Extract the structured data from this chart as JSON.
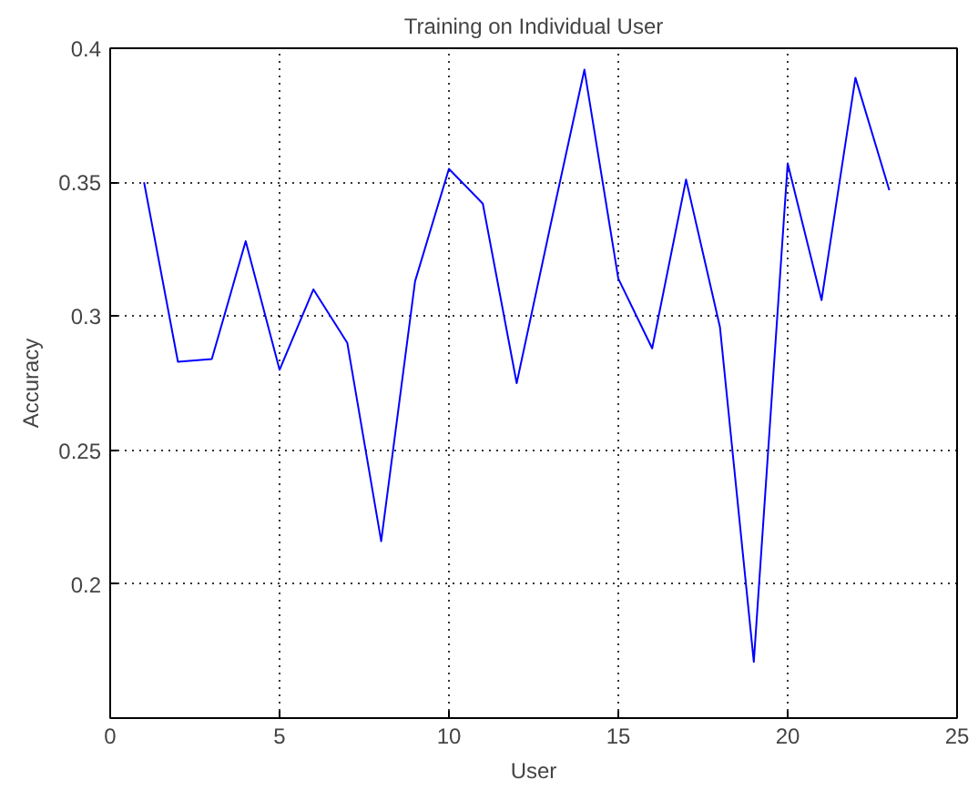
{
  "chart_data": {
    "type": "line",
    "title": "Training on Individual User",
    "xlabel": "User",
    "ylabel": "Accuracy",
    "x": [
      1,
      2,
      3,
      4,
      5,
      6,
      7,
      8,
      9,
      10,
      11,
      12,
      13,
      14,
      15,
      16,
      17,
      18,
      19,
      20,
      21,
      22,
      23
    ],
    "series": [
      {
        "color": "#0000ff",
        "values": [
          0.35,
          0.283,
          0.284,
          0.328,
          0.28,
          0.31,
          0.29,
          0.216,
          0.313,
          0.355,
          0.342,
          0.275,
          0.334,
          0.392,
          0.314,
          0.288,
          0.351,
          0.296,
          0.171,
          0.357,
          0.306,
          0.389,
          0.347
        ]
      }
    ],
    "xlim": [
      0,
      25
    ],
    "xticks": [
      0,
      5,
      10,
      15,
      20,
      25
    ],
    "ylim": [
      0.15,
      0.4
    ],
    "yticks": [
      0.2,
      0.25,
      0.3,
      0.35,
      0.4
    ],
    "grid": true,
    "marker": "none",
    "line_style": "solid"
  }
}
